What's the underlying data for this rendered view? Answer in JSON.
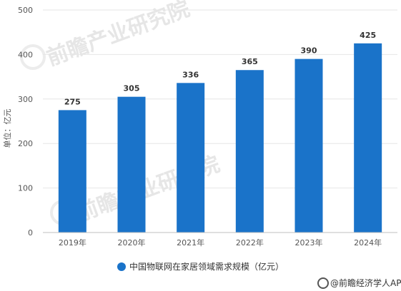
{
  "chart_data": {
    "type": "bar",
    "categories": [
      "2019年",
      "2020年",
      "2021年",
      "2022年",
      "2023年",
      "2024年"
    ],
    "series": [
      {
        "name": "中国物联网在家居领域需求规模（亿元）",
        "values": [
          275,
          305,
          336,
          365,
          390,
          425
        ]
      }
    ],
    "data_labels": [
      "275",
      "305",
      "336",
      "365",
      "390",
      "425"
    ],
    "ylabel": "单位：亿元",
    "ylim": [
      0,
      500
    ],
    "yticks": [
      0,
      100,
      200,
      300,
      400,
      500
    ],
    "grid": true,
    "legend_position": "bottom-center",
    "bar_color": "#1a73c9"
  },
  "footer": {
    "source": "@前瞻经济学人APP"
  },
  "watermark": {
    "text": "前瞻产业研究院"
  }
}
